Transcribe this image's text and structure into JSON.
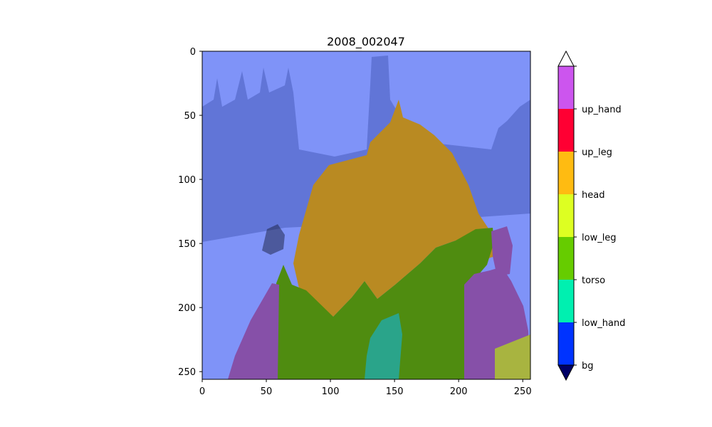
{
  "chart_data": {
    "type": "heatmap",
    "title": "2008_002047",
    "xlabel": "",
    "ylabel": "",
    "xlim": [
      0,
      256
    ],
    "ylim": [
      256,
      0
    ],
    "x_ticks": [
      0,
      50,
      100,
      150,
      200,
      250
    ],
    "y_ticks": [
      0,
      50,
      100,
      150,
      200,
      250
    ],
    "grid": false,
    "colorbar": {
      "classes": [
        "bg",
        "low_hand",
        "torso",
        "low_leg",
        "head",
        "up_leg",
        "up_hand"
      ],
      "colors": [
        "#0033ff",
        "#00f0b0",
        "#66cc00",
        "#ddff22",
        "#ffbb11",
        "#ff0033",
        "#cc55ee"
      ],
      "extend": "both",
      "under_color": "#000066",
      "over_color": "#ffffff"
    },
    "regions": [
      {
        "label": "bg",
        "color": "#7f93f8"
      },
      {
        "label": "head",
        "color": "#b98a22"
      },
      {
        "label": "torso",
        "color": "#4f8c10"
      },
      {
        "label": "up_hand",
        "color": "#8650a8"
      },
      {
        "label": "low_hand",
        "color": "#2aa48a"
      },
      {
        "label": "low_leg",
        "color": "#a8b440"
      }
    ]
  }
}
